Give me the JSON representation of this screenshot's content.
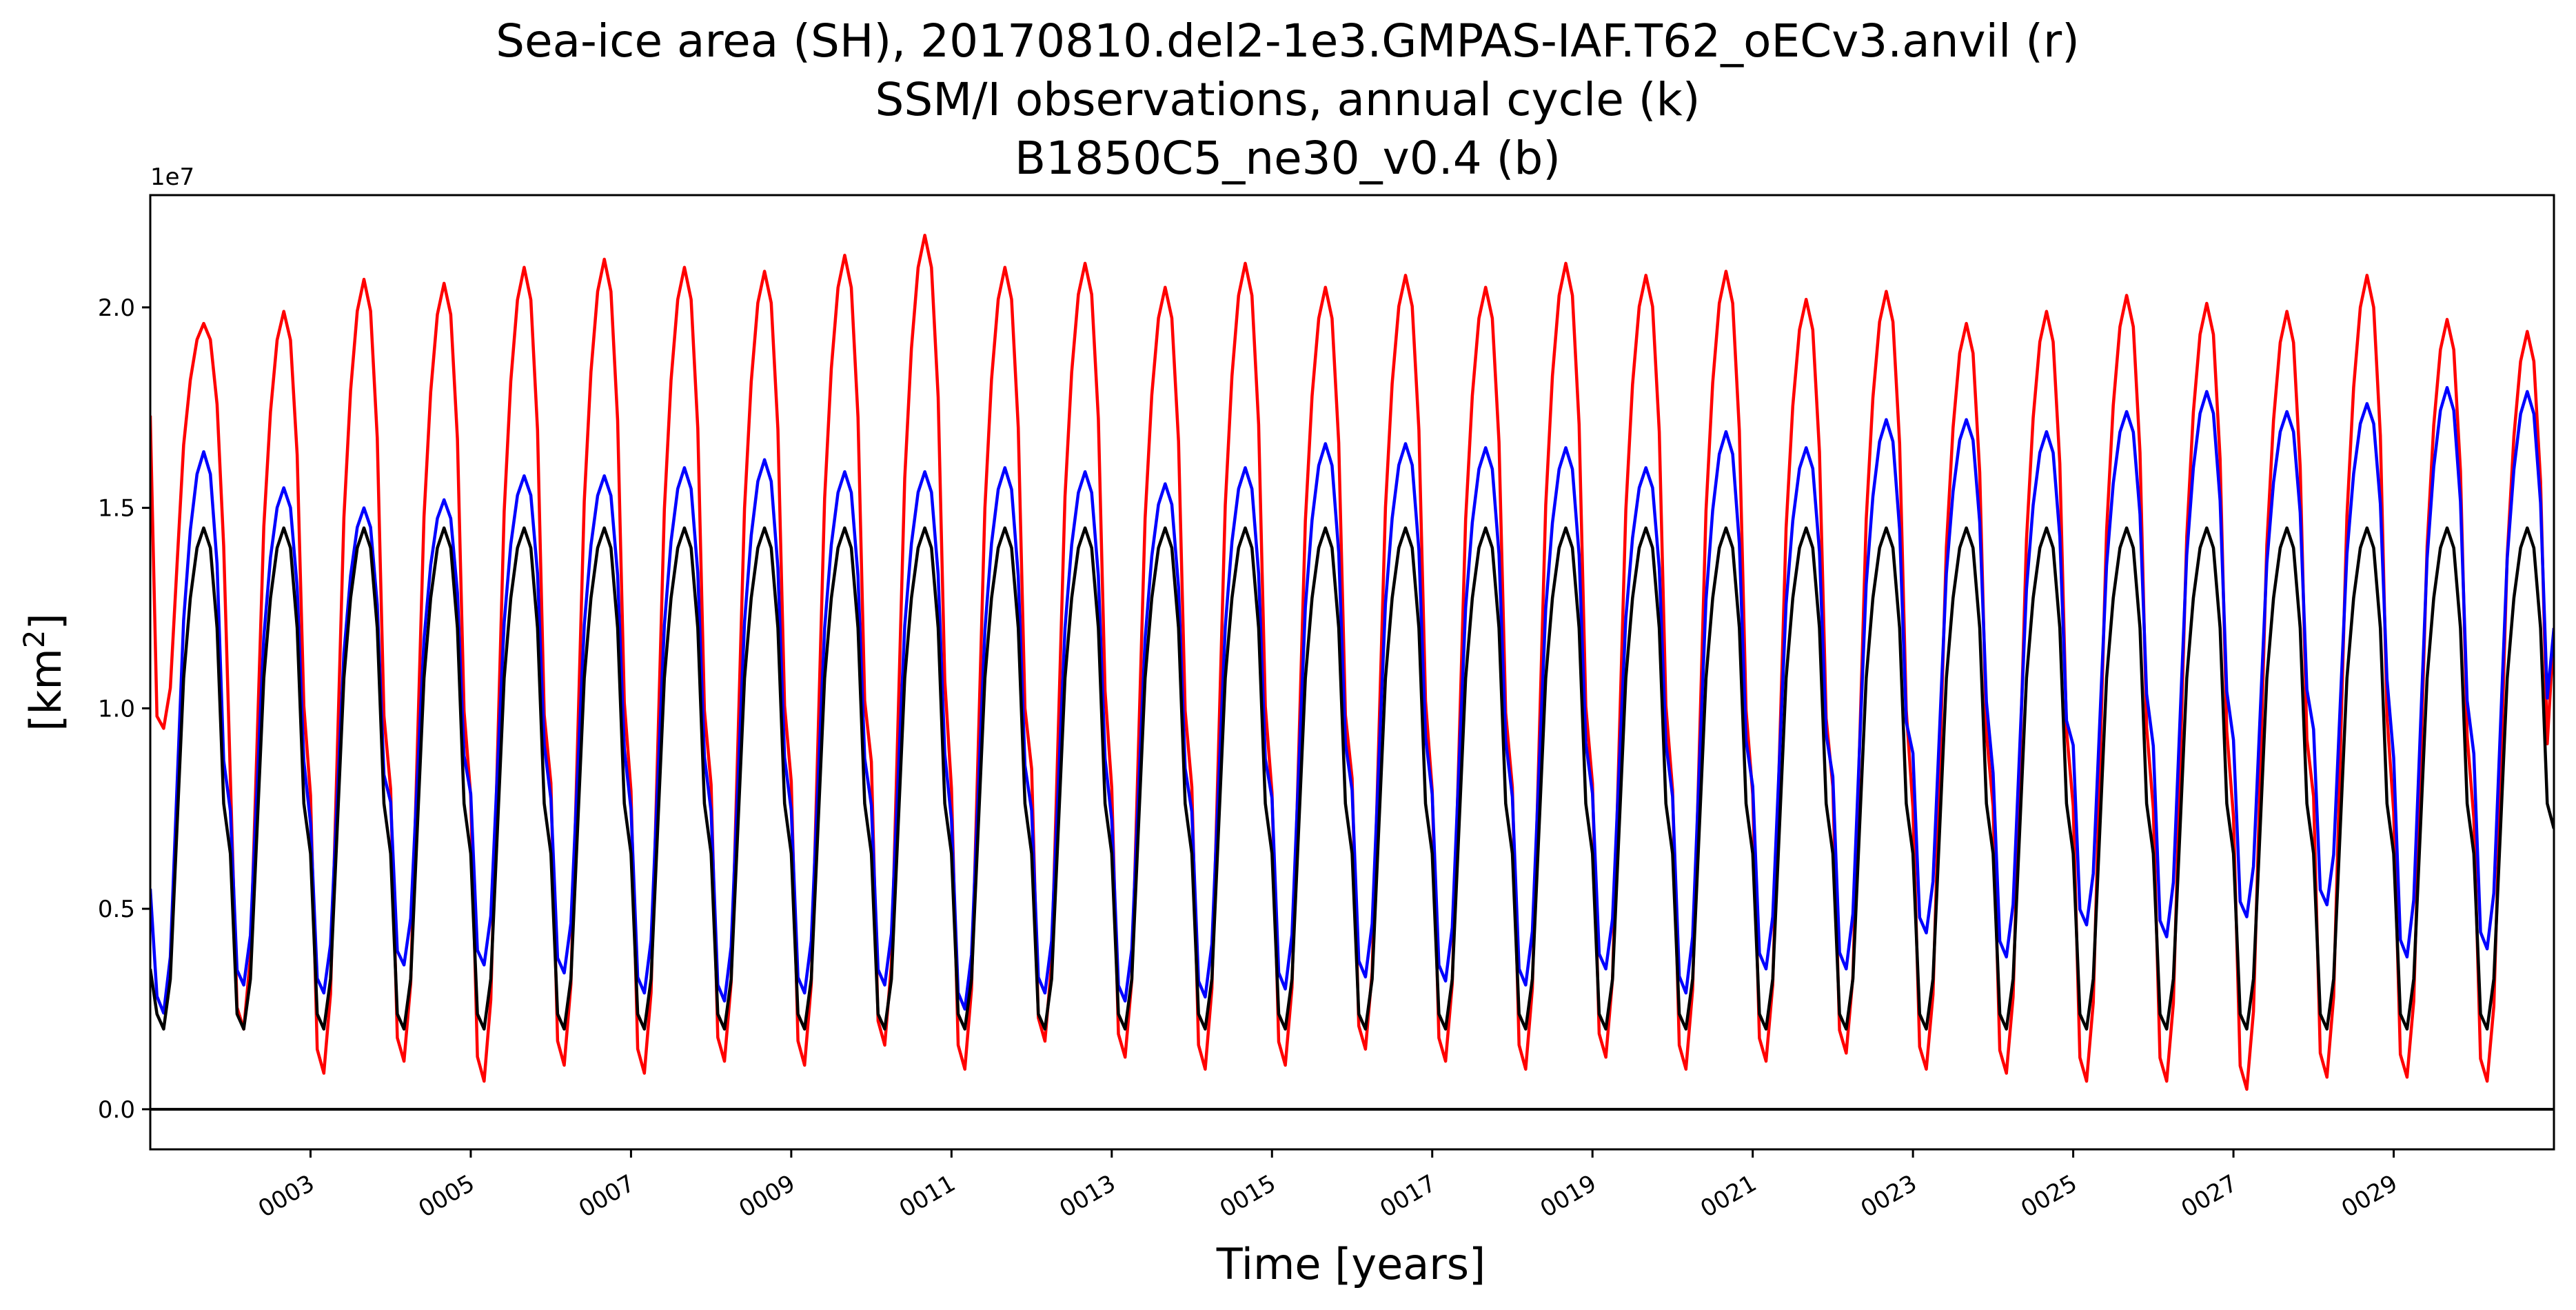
{
  "chart_data": {
    "type": "line",
    "title_lines": [
      "Sea-ice area (SH), 20170810.del2-1e3.GMPAS-IAF.T62_oECv3.anvil (r)",
      "SSM/I observations, annual cycle (k)",
      "B1850C5_ne30_v0.4 (b)"
    ],
    "xlabel": "Time [years]",
    "ylabel_base": "[km",
    "ylabel_sup": "2",
    "ylabel_end": "]",
    "y_offset_text": "1e7",
    "xlim": [
      1.0,
      31.0
    ],
    "ylim": [
      -0.1,
      2.28
    ],
    "x_ticks": [
      3,
      5,
      7,
      9,
      11,
      13,
      15,
      17,
      19,
      21,
      23,
      25,
      27,
      29
    ],
    "x_tick_labels": [
      "0003",
      "0005",
      "0007",
      "0009",
      "0011",
      "0013",
      "0015",
      "0017",
      "0019",
      "0021",
      "0023",
      "0025",
      "0027",
      "0029"
    ],
    "y_ticks": [
      0.0,
      0.5,
      1.0,
      1.5,
      2.0
    ],
    "y_tick_labels": [
      "0.0",
      "0.5",
      "1.0",
      "1.5",
      "2.0"
    ],
    "zero_line": 0.0,
    "series": [
      {
        "color": "#ff0000",
        "label": "r",
        "annual_max": [
          1.96,
          1.99,
          2.07,
          2.06,
          2.1,
          2.12,
          2.1,
          2.09,
          2.13,
          2.18,
          2.1,
          2.11,
          2.05,
          2.11,
          2.05,
          2.08,
          2.05,
          2.11,
          2.08,
          2.09,
          2.02,
          2.04,
          1.96,
          1.99,
          2.03,
          2.01,
          1.99,
          2.08,
          1.97,
          1.94
        ],
        "annual_min": [
          0.95,
          0.2,
          0.09,
          0.12,
          0.07,
          0.11,
          0.09,
          0.12,
          0.11,
          0.16,
          0.1,
          0.17,
          0.13,
          0.1,
          0.11,
          0.15,
          0.12,
          0.1,
          0.13,
          0.1,
          0.12,
          0.14,
          0.1,
          0.09,
          0.07,
          0.07,
          0.05,
          0.08,
          0.08,
          0.07
        ],
        "start_value": 1.73,
        "end_value": 1.2
      },
      {
        "color": "#0000ff",
        "label": "b",
        "annual_max": [
          1.64,
          1.55,
          1.5,
          1.52,
          1.58,
          1.58,
          1.6,
          1.62,
          1.59,
          1.59,
          1.6,
          1.59,
          1.56,
          1.6,
          1.66,
          1.66,
          1.65,
          1.65,
          1.6,
          1.69,
          1.65,
          1.72,
          1.72,
          1.69,
          1.74,
          1.79,
          1.74,
          1.76,
          1.8,
          1.79
        ],
        "annual_min": [
          0.24,
          0.31,
          0.29,
          0.36,
          0.36,
          0.34,
          0.29,
          0.27,
          0.29,
          0.31,
          0.25,
          0.29,
          0.27,
          0.28,
          0.3,
          0.33,
          0.32,
          0.31,
          0.35,
          0.29,
          0.35,
          0.35,
          0.44,
          0.38,
          0.46,
          0.43,
          0.48,
          0.51,
          0.38,
          0.4
        ],
        "start_value": 0.55,
        "end_value": 1.2
      },
      {
        "color": "#000000",
        "label": "k",
        "annual_max": [
          1.45,
          1.45,
          1.45,
          1.45,
          1.45,
          1.45,
          1.45,
          1.45,
          1.45,
          1.45,
          1.45,
          1.45,
          1.45,
          1.45,
          1.45,
          1.45,
          1.45,
          1.45,
          1.45,
          1.45,
          1.45,
          1.45,
          1.45,
          1.45,
          1.45,
          1.45,
          1.45,
          1.45,
          1.45,
          1.45
        ],
        "annual_min": [
          0.2,
          0.2,
          0.2,
          0.2,
          0.2,
          0.2,
          0.2,
          0.2,
          0.2,
          0.2,
          0.2,
          0.2,
          0.2,
          0.2,
          0.2,
          0.2,
          0.2,
          0.2,
          0.2,
          0.2,
          0.2,
          0.2,
          0.2,
          0.2,
          0.2,
          0.2,
          0.2,
          0.2,
          0.2,
          0.2
        ],
        "start_value": 0.35,
        "end_value": 0.7
      }
    ]
  }
}
